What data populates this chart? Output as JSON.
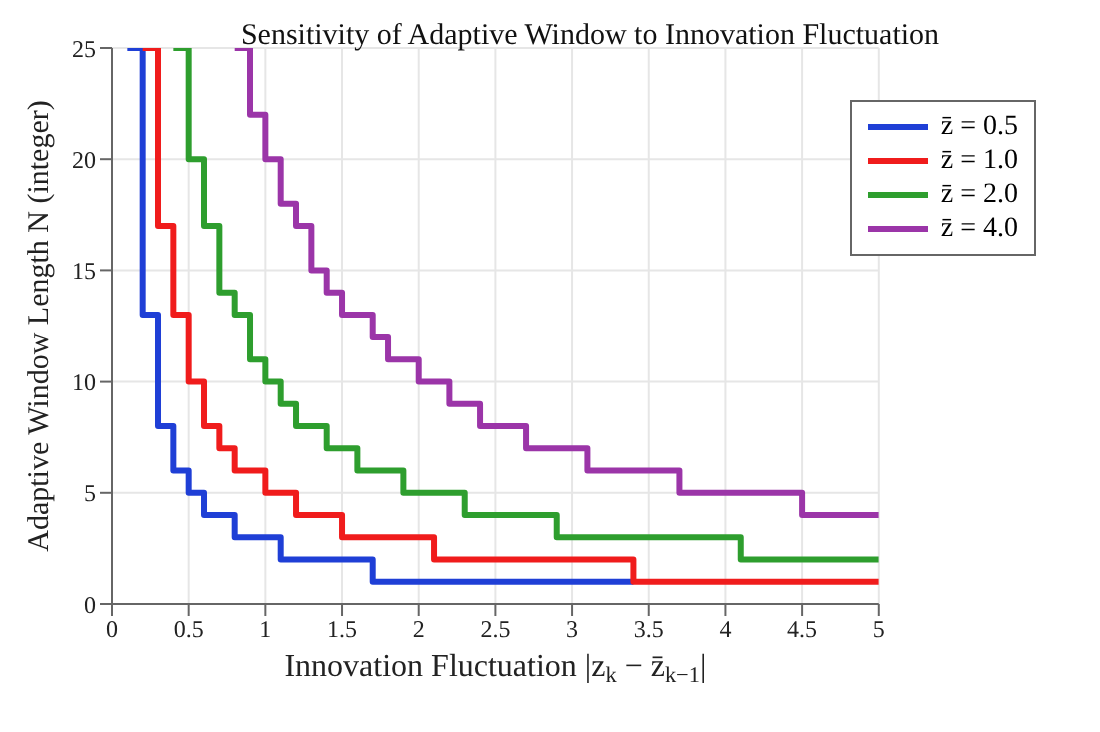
{
  "chart_data": {
    "type": "step",
    "title": "Sensitivity of Adaptive Window to Innovation Fluctuation",
    "xlabel": "Innovation Fluctuation |z$_{k}$ − z̄$_{k−1}$|",
    "ylabel": "Adaptive Window Length N (integer)",
    "xlim": [
      0,
      5
    ],
    "xticks": [
      0,
      0.5,
      1,
      1.5,
      2,
      2.5,
      3,
      3.5,
      4,
      4.5,
      5
    ],
    "ylim": [
      0,
      25
    ],
    "yticks": [
      0,
      5,
      10,
      15,
      20,
      25
    ],
    "grid": true,
    "legend": "top right",
    "series": [
      {
        "name": "z̄ = 0.5",
        "color": "#1f3fd6",
        "x": [
          0.1,
          0.2,
          0.3,
          0.4,
          0.5,
          0.6,
          0.8,
          1.1,
          1.7,
          3.4
        ],
        "values": [
          25,
          13,
          8,
          6,
          5,
          4,
          3,
          2,
          1,
          1
        ]
      },
      {
        "name": "z̄ = 1.0",
        "color": "#f01c1c",
        "x": [
          0.2,
          0.3,
          0.4,
          0.5,
          0.6,
          0.7,
          0.8,
          1.0,
          1.2,
          1.5,
          2.1,
          3.4,
          5
        ],
        "values": [
          25,
          17,
          13,
          10,
          8,
          7,
          6,
          5,
          4,
          3,
          2,
          1,
          1
        ]
      },
      {
        "name": "z̄ = 2.0",
        "color": "#2e9e2e",
        "x": [
          0.4,
          0.5,
          0.6,
          0.7,
          0.8,
          0.9,
          1.0,
          1.1,
          1.2,
          1.4,
          1.6,
          1.9,
          2.3,
          2.9,
          4.1,
          5
        ],
        "values": [
          25,
          20,
          17,
          14,
          13,
          11,
          10,
          9,
          8,
          7,
          6,
          5,
          4,
          3,
          2,
          2
        ]
      },
      {
        "name": "z̄ = 4.0",
        "color": "#9b35a8",
        "x": [
          0.8,
          0.9,
          1.0,
          1.1,
          1.2,
          1.3,
          1.4,
          1.5,
          1.7,
          1.8,
          2.0,
          2.2,
          2.4,
          2.7,
          3.1,
          3.7,
          4.5,
          5
        ],
        "values": [
          25,
          22,
          20,
          18,
          17,
          15,
          14,
          13,
          12,
          11,
          10,
          9,
          8,
          7,
          6,
          5,
          4,
          4
        ]
      }
    ]
  }
}
